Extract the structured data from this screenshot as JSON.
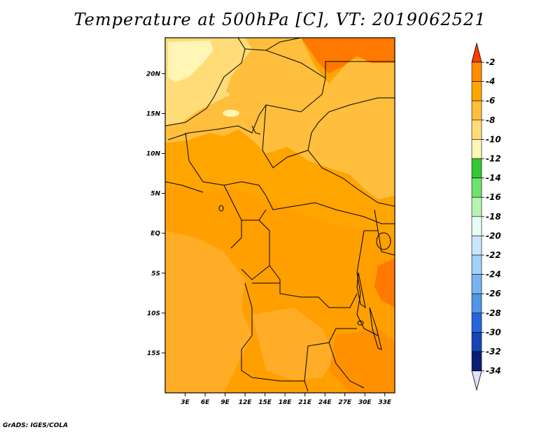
{
  "title": "Temperature at 500hPa [C], VT: 2019062521",
  "credit": "GrADS: IGES/COLA",
  "map": {
    "lon_range": [
      0,
      34.5
    ],
    "lat_range": [
      -20,
      24.5
    ],
    "lat_ticks": [
      {
        "value": 20,
        "label": "20N"
      },
      {
        "value": 15,
        "label": "15N"
      },
      {
        "value": 10,
        "label": "10N"
      },
      {
        "value": 5,
        "label": "5N"
      },
      {
        "value": 0,
        "label": "EQ"
      },
      {
        "value": -5,
        "label": "5S"
      },
      {
        "value": -10,
        "label": "10S"
      },
      {
        "value": -15,
        "label": "15S"
      }
    ],
    "lon_ticks": [
      {
        "value": 3,
        "label": "3E"
      },
      {
        "value": 6,
        "label": "6E"
      },
      {
        "value": 9,
        "label": "9E"
      },
      {
        "value": 12,
        "label": "12E"
      },
      {
        "value": 15,
        "label": "15E"
      },
      {
        "value": 18,
        "label": "18E"
      },
      {
        "value": 21,
        "label": "21E"
      },
      {
        "value": 24,
        "label": "24E"
      },
      {
        "value": 27,
        "label": "27E"
      },
      {
        "value": 30,
        "label": "30E"
      },
      {
        "value": 33,
        "label": "33E"
      }
    ]
  },
  "colorbar": {
    "labels": [
      "-2",
      "-4",
      "-6",
      "-8",
      "-10",
      "-12",
      "-14",
      "-16",
      "-18",
      "-20",
      "-22",
      "-24",
      "-26",
      "-28",
      "-30",
      "-32",
      "-34"
    ],
    "colors": [
      "#ff3c00",
      "#ff8c00",
      "#ffa500",
      "#ffbe3c",
      "#ffdc78",
      "#fff5b4",
      "#32c832",
      "#6ee26e",
      "#b4f5b4",
      "#e6fff5",
      "#c8e6ff",
      "#a0d2fa",
      "#78b4f0",
      "#5096e6",
      "#2864dc",
      "#1446b4",
      "#0a1e78",
      "#1e0a5a",
      "#e0e0ff"
    ]
  }
}
